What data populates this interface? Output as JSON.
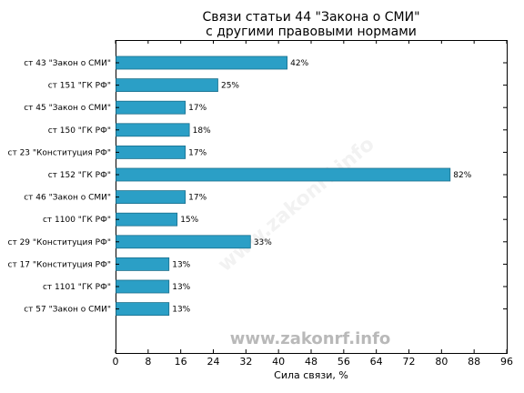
{
  "chart_data": {
    "type": "bar",
    "orientation": "horizontal",
    "title_lines": [
      "Связи статьи 44 \"Закона о СМИ\"",
      "с другими правовыми нормами"
    ],
    "xlabel": "Сила связи, %",
    "ylabel": "",
    "xlim": [
      0,
      96
    ],
    "xticks": [
      0,
      8,
      16,
      24,
      32,
      40,
      48,
      56,
      64,
      72,
      80,
      88,
      96
    ],
    "grid": false,
    "categories": [
      "ст 43 \"Закон о СМИ\"",
      "ст 151 \"ГК РФ\"",
      "ст 45 \"Закон о СМИ\"",
      "ст 150 \"ГК РФ\"",
      "ст 23 \"Конституция РФ\"",
      "ст 152 \"ГК РФ\"",
      "ст 46 \"Закон о СМИ\"",
      "ст 1100 \"ГК РФ\"",
      "ст 29 \"Конституция РФ\"",
      "ст 17 \"Конституция РФ\"",
      "ст 1101 \"ГК РФ\"",
      "ст 57 \"Закон о СМИ\""
    ],
    "values": [
      42,
      25,
      17,
      18,
      17,
      82,
      17,
      15,
      33,
      13,
      13,
      13
    ],
    "value_labels": [
      "42%",
      "25%",
      "17%",
      "18%",
      "17%",
      "82%",
      "17%",
      "15%",
      "33%",
      "13%",
      "13%",
      "13%"
    ],
    "bar_color": "#2b9fc6",
    "bar_edge_color": "#1a6f8c"
  },
  "watermark": {
    "text": "www.zakonrf.info",
    "color": "#b9b9b9"
  }
}
